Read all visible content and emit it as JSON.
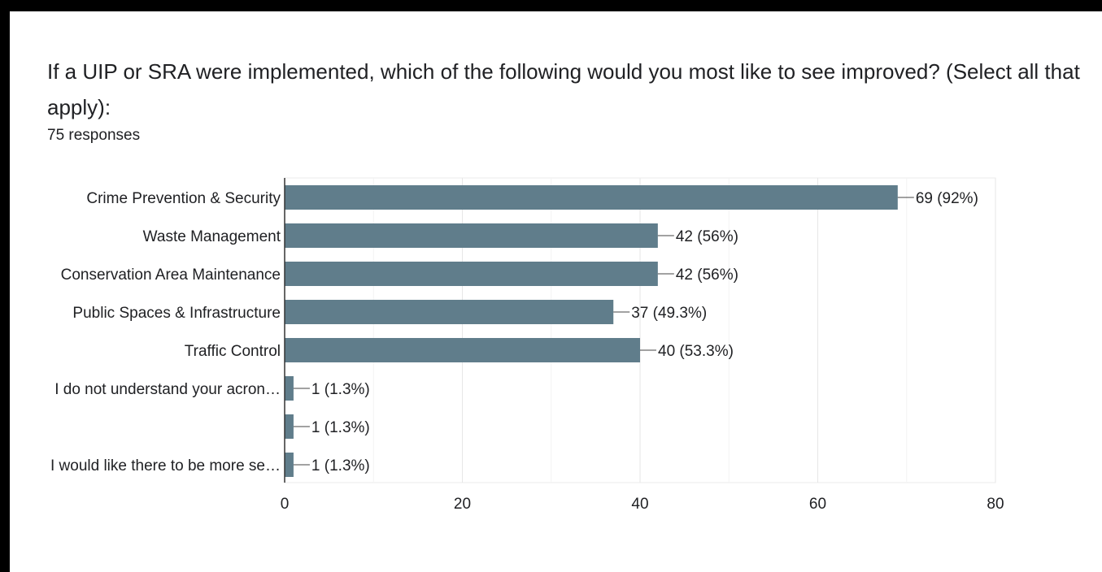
{
  "question": {
    "title": "If a UIP or SRA were implemented, which of the following would you most like to see improved? (Select all that apply):",
    "response_count": "75 responses"
  },
  "colors": {
    "bar": "#607d8b",
    "grid": "#ebebeb",
    "axis": "#333333",
    "text": "#202124"
  },
  "chart_data": {
    "type": "bar",
    "orientation": "horizontal",
    "categories": [
      "Crime Prevention & Security",
      "Waste Management",
      "Conservation Area Maintenance",
      "Public Spaces & Infrastructure",
      "Traffic Control",
      "I do not understand your acron…",
      "",
      "I would like there to be more se…"
    ],
    "values": [
      69,
      42,
      42,
      37,
      40,
      1,
      1,
      1
    ],
    "data_labels": [
      "69 (92%)",
      "42 (56%)",
      "42 (56%)",
      "37 (49.3%)",
      "40 (53.3%)",
      "1 (1.3%)",
      "1 (1.3%)",
      "1 (1.3%)"
    ],
    "xlim": [
      0,
      80
    ],
    "xticks": [
      0,
      20,
      40,
      60,
      80
    ],
    "grid": true,
    "legend": "none"
  }
}
